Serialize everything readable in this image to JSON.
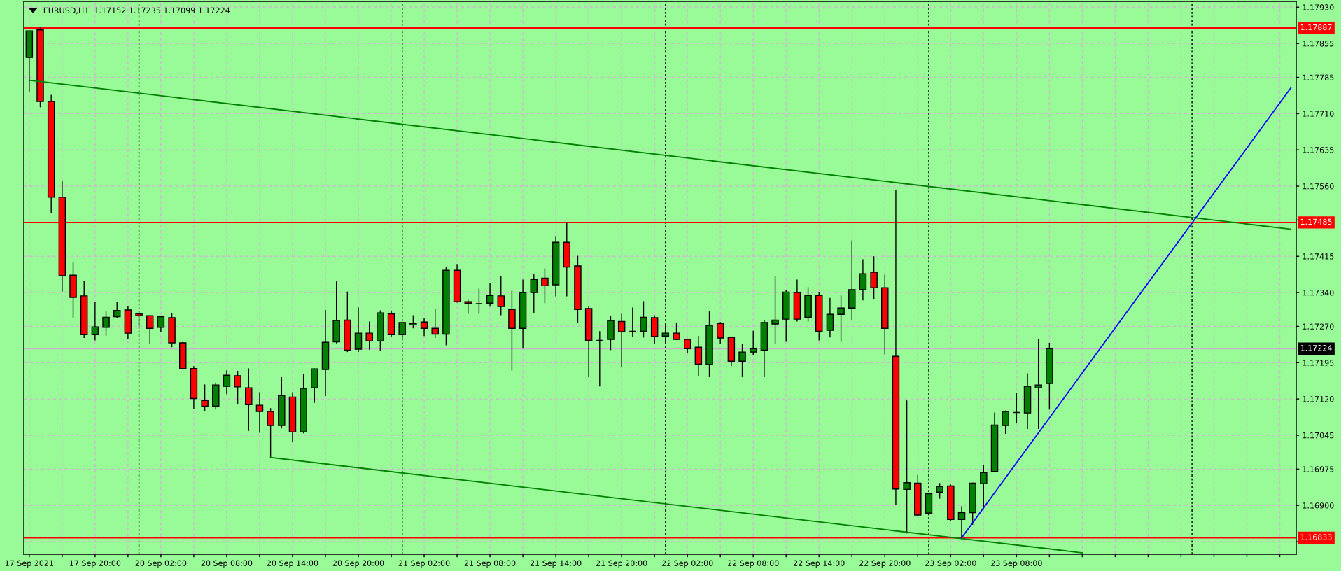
{
  "chart_data": {
    "type": "candlestick",
    "title": "EURUSD,H1  1.17152 1.17235 1.17099 1.17224",
    "categories": [
      "17 Sep 2021",
      null,
      null,
      null,
      null,
      null,
      "17 Sep 20:00",
      null,
      null,
      null,
      null,
      null,
      "20 Sep 02:00",
      null,
      null,
      null,
      null,
      null,
      "20 Sep 08:00",
      null,
      null,
      null,
      null,
      null,
      "20 Sep 14:00",
      null,
      null,
      null,
      null,
      null,
      "20 Sep 20:00",
      null,
      null,
      null,
      null,
      null,
      "21 Sep 02:00",
      null,
      null,
      null,
      null,
      null,
      "21 Sep 08:00",
      null,
      null,
      null,
      null,
      null,
      "21 Sep 14:00",
      null,
      null,
      null,
      null,
      null,
      "21 Sep 20:00",
      null,
      null,
      null,
      null,
      null,
      "22 Sep 02:00",
      null,
      null,
      null,
      null,
      null,
      "22 Sep 08:00",
      null,
      null,
      null,
      null,
      null,
      "22 Sep 14:00",
      null,
      null,
      null,
      null,
      null,
      "22 Sep 20:00",
      null,
      null,
      null,
      null,
      null,
      "23 Sep 02:00",
      null,
      null,
      null,
      null,
      null,
      "23 Sep 08:00",
      null,
      null,
      null,
      null,
      null,
      null,
      null,
      null,
      null,
      null,
      null,
      null,
      null,
      null,
      null,
      null,
      null,
      null,
      null,
      null,
      null,
      null,
      null,
      null,
      null
    ],
    "ohlc": [
      [
        1.17826,
        1.17881,
        1.17756,
        1.17881
      ],
      [
        1.17883,
        1.17887,
        1.17724,
        1.17735
      ],
      [
        1.17735,
        1.17748,
        1.17506,
        1.17537
      ],
      [
        1.17537,
        1.1757,
        1.17343,
        1.17375
      ],
      [
        1.17376,
        1.17402,
        1.17289,
        1.1733
      ],
      [
        1.17333,
        1.17363,
        1.17247,
        1.17253
      ],
      [
        1.17253,
        1.17319,
        1.17242,
        1.17269
      ],
      [
        1.17268,
        1.173,
        1.17252,
        1.17289
      ],
      [
        1.1729,
        1.17319,
        1.17288,
        1.17303
      ],
      [
        1.17304,
        1.1731,
        1.17245,
        1.17256
      ],
      [
        1.17296,
        1.17297,
        1.17269,
        1.17292
      ],
      [
        1.17292,
        1.17292,
        1.17235,
        1.17266
      ],
      [
        1.17268,
        1.1729,
        1.17259,
        1.1729
      ],
      [
        1.17288,
        1.17296,
        1.17228,
        1.17236
      ],
      [
        1.17236,
        1.17237,
        1.17183,
        1.17183
      ],
      [
        1.17183,
        1.17187,
        1.17101,
        1.17121
      ],
      [
        1.17117,
        1.17149,
        1.17096,
        1.17105
      ],
      [
        1.17105,
        1.17153,
        1.17099,
        1.17149
      ],
      [
        1.17146,
        1.17178,
        1.17131,
        1.17169
      ],
      [
        1.17168,
        1.17177,
        1.1711,
        1.17145
      ],
      [
        1.17143,
        1.17182,
        1.17055,
        1.17108
      ],
      [
        1.17107,
        1.17133,
        1.17051,
        1.17094
      ],
      [
        1.17094,
        1.171,
        1.16999,
        1.17065
      ],
      [
        1.17065,
        1.17164,
        1.1706,
        1.17127
      ],
      [
        1.17124,
        1.17133,
        1.17032,
        1.17052
      ],
      [
        1.17052,
        1.1717,
        1.1705,
        1.17142
      ],
      [
        1.17143,
        1.17182,
        1.17113,
        1.17182
      ],
      [
        1.17181,
        1.17303,
        1.17127,
        1.17237
      ],
      [
        1.17238,
        1.17362,
        1.17236,
        1.17282
      ],
      [
        1.17283,
        1.17341,
        1.17218,
        1.17221
      ],
      [
        1.17223,
        1.17308,
        1.17218,
        1.17256
      ],
      [
        1.17256,
        1.17279,
        1.17223,
        1.1724
      ],
      [
        1.1724,
        1.17302,
        1.17221,
        1.17298
      ],
      [
        1.17296,
        1.17302,
        1.1725,
        1.17253
      ],
      [
        1.17253,
        1.17278,
        1.17244,
        1.17278
      ],
      [
        1.17273,
        1.17292,
        1.17267,
        1.17276
      ],
      [
        1.17279,
        1.17286,
        1.17251,
        1.17266
      ],
      [
        1.17266,
        1.17306,
        1.17247,
        1.17254
      ],
      [
        1.17254,
        1.17392,
        1.17232,
        1.17386
      ],
      [
        1.17386,
        1.17398,
        1.1732,
        1.17321
      ],
      [
        1.17321,
        1.17324,
        1.17297,
        1.17318
      ],
      [
        1.17317,
        1.17347,
        1.17297,
        1.17317
      ],
      [
        1.17318,
        1.17358,
        1.17312,
        1.17334
      ],
      [
        1.17333,
        1.17374,
        1.17294,
        1.17311
      ],
      [
        1.17305,
        1.17343,
        1.1718,
        1.17266
      ],
      [
        1.17266,
        1.17366,
        1.17225,
        1.1734
      ],
      [
        1.1734,
        1.17378,
        1.17299,
        1.17367
      ],
      [
        1.1737,
        1.17389,
        1.17319,
        1.17354
      ],
      [
        1.17356,
        1.17456,
        1.17333,
        1.17444
      ],
      [
        1.17444,
        1.17485,
        1.17333,
        1.17393
      ],
      [
        1.17395,
        1.17415,
        1.17278,
        1.17305
      ],
      [
        1.17307,
        1.17311,
        1.17166,
        1.17241
      ],
      [
        1.17241,
        1.17259,
        1.17147,
        1.17241
      ],
      [
        1.17243,
        1.17291,
        1.17222,
        1.17282
      ],
      [
        1.1728,
        1.17295,
        1.17186,
        1.17259
      ],
      [
        1.1726,
        1.17308,
        1.1725,
        1.1726
      ],
      [
        1.1726,
        1.17321,
        1.17248,
        1.17289
      ],
      [
        1.17288,
        1.17292,
        1.17235,
        1.17249
      ],
      [
        1.1725,
        1.17274,
        1.17235,
        1.17256
      ],
      [
        1.17256,
        1.17277,
        1.17243,
        1.17243
      ],
      [
        1.17243,
        1.17243,
        1.17216,
        1.17224
      ],
      [
        1.17227,
        1.17249,
        1.17168,
        1.17192
      ],
      [
        1.17191,
        1.17301,
        1.17166,
        1.17272
      ],
      [
        1.17276,
        1.17278,
        1.17235,
        1.17246
      ],
      [
        1.17247,
        1.17247,
        1.17189,
        1.17198
      ],
      [
        1.17198,
        1.17233,
        1.17166,
        1.17217
      ],
      [
        1.17217,
        1.1726,
        1.17212,
        1.17224
      ],
      [
        1.17221,
        1.17282,
        1.17166,
        1.17278
      ],
      [
        1.17275,
        1.17373,
        1.17234,
        1.17283
      ],
      [
        1.17285,
        1.17344,
        1.17239,
        1.17341
      ],
      [
        1.1734,
        1.17366,
        1.17281,
        1.17285
      ],
      [
        1.17289,
        1.1735,
        1.17281,
        1.17334
      ],
      [
        1.17334,
        1.1734,
        1.17242,
        1.1726
      ],
      [
        1.17262,
        1.17328,
        1.17248,
        1.17295
      ],
      [
        1.17295,
        1.17333,
        1.17239,
        1.17308
      ],
      [
        1.17308,
        1.17447,
        1.17284,
        1.17346
      ],
      [
        1.17346,
        1.17408,
        1.17325,
        1.17379
      ],
      [
        1.17382,
        1.17414,
        1.17328,
        1.1735
      ],
      [
        1.1735,
        1.17376,
        1.17213,
        1.17266
      ],
      [
        1.17208,
        1.17551,
        1.16902,
        1.16934
      ],
      [
        1.16933,
        1.17116,
        1.16843,
        1.16947
      ],
      [
        1.16946,
        1.16962,
        1.1688,
        1.1688
      ],
      [
        1.16884,
        1.16924,
        1.16881,
        1.16924
      ],
      [
        1.16927,
        1.16945,
        1.16915,
        1.16939
      ],
      [
        1.1694,
        1.16942,
        1.16868,
        1.16871
      ],
      [
        1.16871,
        1.16897,
        1.16833,
        1.16885
      ],
      [
        1.16885,
        1.16946,
        1.16861,
        1.16946
      ],
      [
        1.16945,
        1.16983,
        1.16892,
        1.16968
      ],
      [
        1.1697,
        1.17091,
        1.1697,
        1.17066
      ],
      [
        1.17065,
        1.17095,
        1.17049,
        1.17094
      ],
      [
        1.17092,
        1.17131,
        1.17071,
        1.17092
      ],
      [
        1.17091,
        1.17172,
        1.17059,
        1.17146
      ],
      [
        1.17143,
        1.17243,
        1.17059,
        1.17149
      ],
      [
        1.17152,
        1.17235,
        1.17099,
        1.17224
      ],
      null,
      null,
      null,
      null,
      null,
      null,
      null,
      null,
      null,
      null,
      null,
      null,
      null,
      null,
      null,
      null,
      null,
      null,
      null,
      null,
      null,
      null
    ],
    "colors": [
      "#008000",
      "#ff0000",
      "#ff0000",
      "#ff0000",
      "#ff0000",
      "#ff0000",
      "#008000",
      "#008000",
      "#008000",
      "#ff0000",
      "#ff0000",
      "#ff0000",
      "#008000",
      "#ff0000",
      "#ff0000",
      "#ff0000",
      "#ff0000",
      "#008000",
      "#008000",
      "#ff0000",
      "#ff0000",
      "#ff0000",
      "#ff0000",
      "#008000",
      "#ff0000",
      "#008000",
      "#008000",
      "#008000",
      "#008000",
      "#ff0000",
      "#008000",
      "#ff0000",
      "#008000",
      "#ff0000",
      "#008000",
      "#008000",
      "#ff0000",
      "#ff0000",
      "#008000",
      "#ff0000",
      "#ff0000",
      "#000000",
      "#008000",
      "#ff0000",
      "#ff0000",
      "#008000",
      "#008000",
      "#ff0000",
      "#008000",
      "#ff0000",
      "#ff0000",
      "#ff0000",
      "#000000",
      "#008000",
      "#ff0000",
      "#000000",
      "#008000",
      "#ff0000",
      "#008000",
      "#ff0000",
      "#ff0000",
      "#ff0000",
      "#008000",
      "#ff0000",
      "#ff0000",
      "#008000",
      "#008000",
      "#008000",
      "#008000",
      "#008000",
      "#ff0000",
      "#008000",
      "#ff0000",
      "#008000",
      "#008000",
      "#008000",
      "#008000",
      "#ff0000",
      "#ff0000",
      "#ff0000",
      "#008000",
      "#ff0000",
      "#008000",
      "#008000",
      "#ff0000",
      "#008000",
      "#008000",
      "#008000",
      "#008000",
      "#008000",
      "#000000",
      "#008000",
      "#008000",
      "#008000",
      null,
      null,
      null,
      null,
      null,
      null,
      null,
      null,
      null,
      null,
      null,
      null,
      null,
      null,
      null,
      null,
      null,
      null,
      null,
      null,
      null,
      null
    ],
    "series": [
      {
        "type": "line",
        "color": "#008000",
        "values": [
          1.17779,
          null,
          null,
          null,
          null,
          null,
          null,
          null,
          null,
          null,
          null,
          null,
          null,
          null,
          null,
          null,
          null,
          null,
          null,
          null,
          null,
          null,
          null,
          null,
          null,
          null,
          null,
          null,
          null,
          null,
          null,
          null,
          null,
          null,
          null,
          null,
          null,
          null,
          null,
          null,
          null,
          null,
          null,
          null,
          null,
          null,
          null,
          null,
          null,
          null,
          null,
          null,
          null,
          null,
          null,
          null,
          null,
          null,
          null,
          null,
          null,
          null,
          null,
          null,
          null,
          null,
          null,
          null,
          null,
          null,
          null,
          null,
          null,
          null,
          null,
          null,
          null,
          null,
          null,
          null,
          null,
          null,
          null,
          null,
          null,
          null,
          null,
          null,
          null,
          null,
          null,
          null,
          null,
          null,
          null,
          null,
          null,
          null,
          null,
          null,
          null,
          null,
          null,
          null,
          null,
          null,
          null,
          null,
          null,
          null,
          null,
          null,
          null,
          null,
          null,
          1.17471
        ]
      },
      {
        "type": "line",
        "color": "#008000",
        "values": [
          null,
          null,
          null,
          null,
          null,
          null,
          null,
          null,
          null,
          null,
          null,
          null,
          null,
          null,
          null,
          null,
          null,
          null,
          null,
          null,
          null,
          null,
          1.16999,
          null,
          null,
          null,
          null,
          null,
          null,
          null,
          null,
          null,
          null,
          null,
          null,
          null,
          null,
          null,
          null,
          null,
          null,
          null,
          null,
          null,
          null,
          null,
          null,
          null,
          null,
          null,
          null,
          null,
          null,
          null,
          null,
          null,
          null,
          null,
          null,
          null,
          null,
          null,
          null,
          null,
          null,
          null,
          null,
          null,
          null,
          null,
          null,
          null,
          null,
          null,
          null,
          null,
          null,
          null,
          null,
          null,
          null,
          null,
          null,
          null,
          null,
          null,
          null,
          null,
          null,
          null,
          null,
          null,
          null,
          null,
          null,
          null,
          1.16802,
          null,
          null,
          null,
          null,
          null,
          null,
          null,
          null,
          null,
          null,
          null,
          null,
          null,
          null,
          null,
          null,
          null,
          null,
          null
        ]
      },
      {
        "type": "line",
        "color": "#0000ff",
        "values": [
          null,
          null,
          null,
          null,
          null,
          null,
          null,
          null,
          null,
          null,
          null,
          null,
          null,
          null,
          null,
          null,
          null,
          null,
          null,
          null,
          null,
          null,
          null,
          null,
          null,
          null,
          null,
          null,
          null,
          null,
          null,
          null,
          null,
          null,
          null,
          null,
          null,
          null,
          null,
          null,
          null,
          null,
          null,
          null,
          null,
          null,
          null,
          null,
          null,
          null,
          null,
          null,
          null,
          null,
          null,
          null,
          null,
          null,
          null,
          null,
          null,
          null,
          null,
          null,
          null,
          null,
          null,
          null,
          null,
          null,
          null,
          null,
          null,
          null,
          null,
          null,
          null,
          null,
          null,
          null,
          null,
          null,
          null,
          null,
          null,
          1.16833,
          null,
          null,
          null,
          null,
          null,
          null,
          null,
          null,
          null,
          null,
          null,
          null,
          null,
          null,
          null,
          null,
          null,
          null,
          null,
          null,
          null,
          null,
          null,
          null,
          null,
          null,
          null,
          null,
          null,
          1.17763
        ]
      }
    ],
    "ylim": [
      1.16799,
      1.17942
    ],
    "yticks": [
      {
        "value": 1.1793,
        "label": "1.17930"
      },
      1.17855,
      1.17785,
      {
        "value": 1.1771,
        "label": "1.17710"
      },
      1.17635,
      {
        "value": 1.1756,
        "label": "1.17560"
      },
      {
        "value": 1.1749,
        "label": null
      },
      1.17415,
      {
        "value": 1.1734,
        "label": "1.17340"
      },
      {
        "value": 1.1727,
        "label": "1.17270"
      },
      1.17195,
      {
        "value": 1.1712,
        "label": "1.17120"
      },
      1.17045,
      1.16975,
      {
        "value": 1.169,
        "label": "1.16900"
      },
      {
        "value": 1.16825,
        "label": null
      }
    ],
    "grid": true,
    "ref_lines": [
      {
        "axis": "y",
        "value": 1.17887,
        "label": "1.17887",
        "color": "#ff0000"
      },
      {
        "axis": "y",
        "value": 1.17485,
        "label": "1.17485",
        "color": "#ff0000"
      },
      {
        "axis": "y",
        "value": 1.16833,
        "label": "1.16833",
        "color": "#ff0000"
      },
      {
        "axis": "y",
        "value": 1.17224,
        "label": "1.17224",
        "color": "#c8b4c8"
      }
    ]
  }
}
